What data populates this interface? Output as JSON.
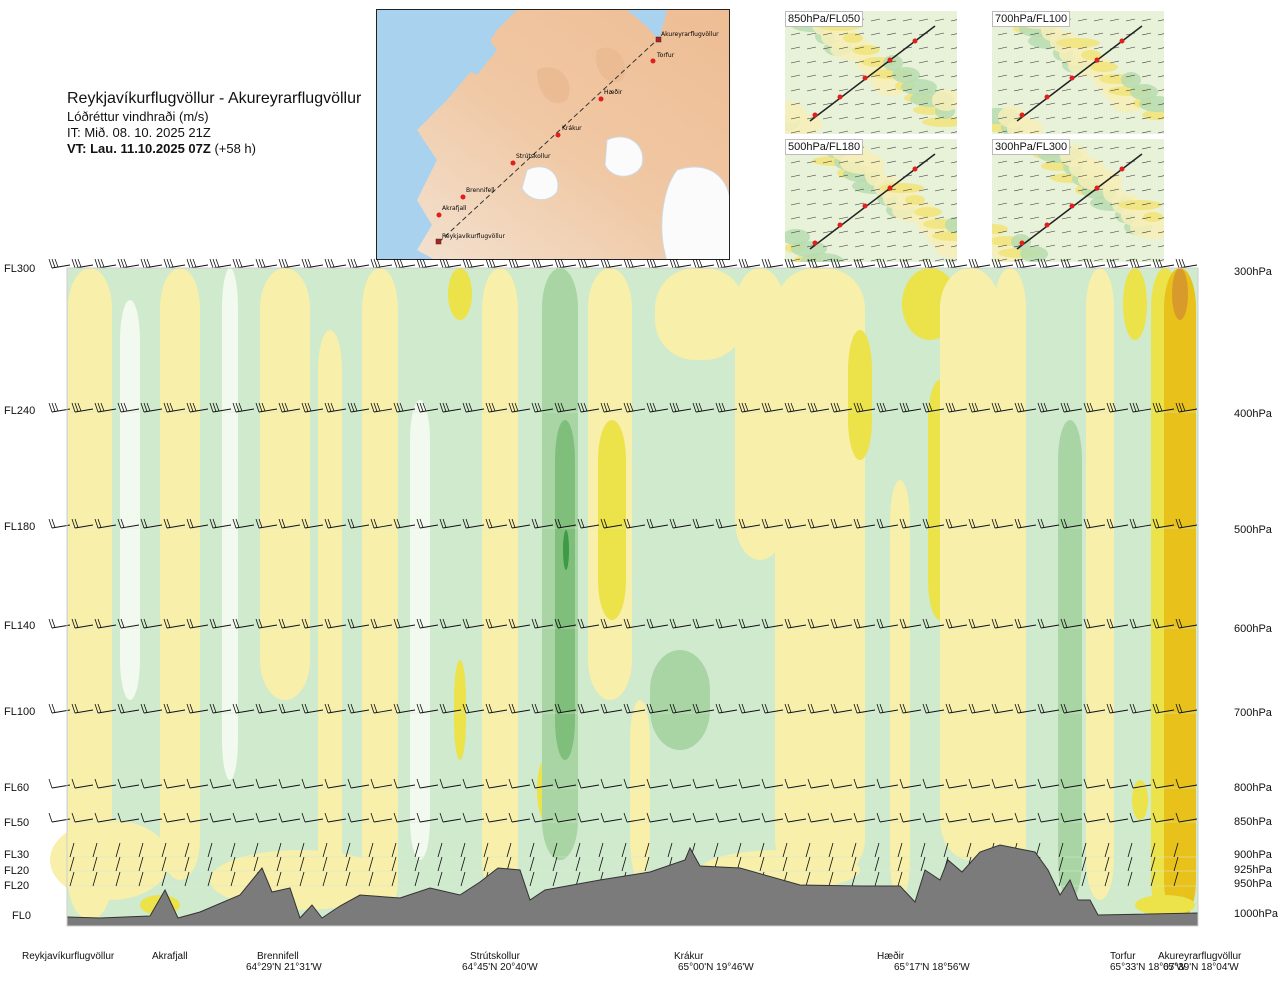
{
  "header": {
    "title": "Reykjavíkurflugvöllur - Akureyrarflugvöllur",
    "variable": "Lóðréttur vindhraði (m/s)",
    "init_time": "IT: Mið. 08. 10. 2025 21Z",
    "valid_prefix": "VT: Lau. 11.10.2025 07Z",
    "valid_suffix": "(+58 h)"
  },
  "map": {
    "stations": [
      "Akureyrarflugvöllur",
      "Torfur",
      "Hæðir",
      "Krákur",
      "Strútskollur",
      "Brennifell",
      "Akrafjall",
      "Reykjavíkurflugvöllur"
    ]
  },
  "insets": [
    {
      "label": "850hPa/FL050"
    },
    {
      "label": "700hPa/FL100"
    },
    {
      "label": "500hPa/FL180"
    },
    {
      "label": "300hPa/FL300"
    }
  ],
  "chart_data": {
    "type": "heatmap",
    "title": "Reykjavíkurflugvöllur - Akureyrarflugvöllur",
    "variable": "Lóðréttur vindhraði (m/s)",
    "levels": [
      {
        "fl": "FL300",
        "hpa": "300hPa"
      },
      {
        "fl": "FL240",
        "hpa": "400hPa"
      },
      {
        "fl": "FL180",
        "hpa": "500hPa"
      },
      {
        "fl": "FL140",
        "hpa": "600hPa"
      },
      {
        "fl": "FL100",
        "hpa": "700hPa"
      },
      {
        "fl": "FL60",
        "hpa": "800hPa"
      },
      {
        "fl": "FL50",
        "hpa": "850hPa"
      },
      {
        "fl": "FL30",
        "hpa": "900hPa"
      },
      {
        "fl": "FL20",
        "hpa": "925hPa"
      },
      {
        "fl": "FL20",
        "hpa": "950hPa"
      },
      {
        "fl": "FL0",
        "hpa": "1000hPa"
      }
    ],
    "stations": [
      {
        "name": "Reykjavíkurflugvöllur",
        "coord": ""
      },
      {
        "name": "Akrafjall",
        "coord": ""
      },
      {
        "name": "Brennifell",
        "coord": "64°29'N 21°31'W"
      },
      {
        "name": "Strútskollur",
        "coord": "64°45'N 20°40'W"
      },
      {
        "name": "Krákur",
        "coord": "65°00'N 19°46'W"
      },
      {
        "name": "Hæðir",
        "coord": "65°17'N 18°56'W"
      },
      {
        "name": "Torfur",
        "coord": "65°33'N 18°07'W"
      },
      {
        "name": "Akureyrarflugvöllur",
        "coord": "65°39'N 18°04'W"
      }
    ],
    "colors": {
      "strong_down": "#3d9a45",
      "down": "#7fbf7b",
      "weak_down": "#a9d5a4",
      "light_down": "#cfeacd",
      "neutral": "#f2f9ee",
      "light_up": "#f7efaa",
      "up": "#ece24a",
      "strong_up": "#e8c21a",
      "max_up": "#d89a2a",
      "terrain": "#7b7b7b"
    }
  }
}
